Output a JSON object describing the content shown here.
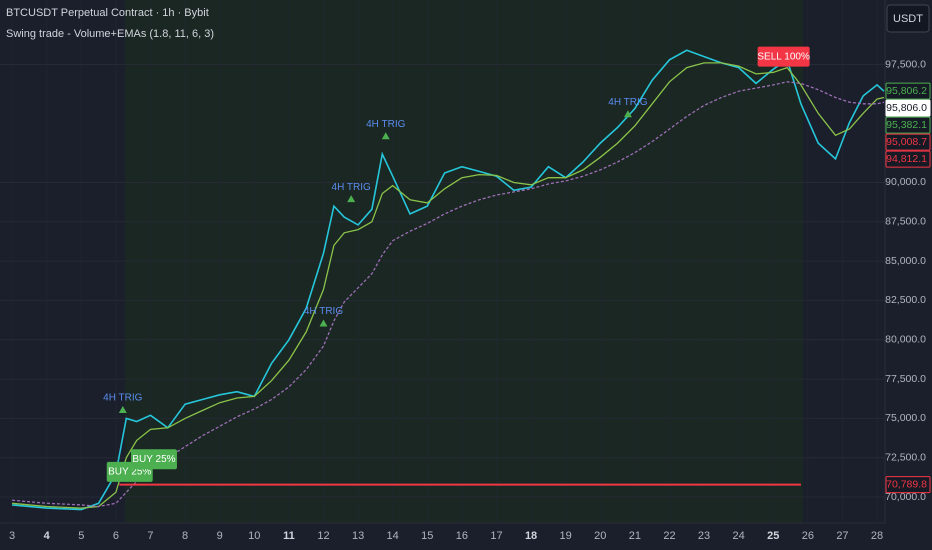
{
  "chart_data": {
    "type": "line",
    "title": "BTCUSDT Perpetual Contract · 1h · Bybit",
    "subtitle": "Swing trade - Volume+EMAs (1.8, 11, 6, 3)",
    "currency_button": "USDT",
    "x": [
      3,
      4,
      5,
      5.5,
      6,
      6.3,
      6.6,
      7,
      7.5,
      8,
      8.5,
      9,
      9.5,
      10,
      10.5,
      11,
      11.5,
      12,
      12.3,
      12.6,
      13,
      13.4,
      13.7,
      14,
      14.5,
      15,
      15.5,
      16,
      16.5,
      17,
      17.5,
      18,
      18.5,
      19,
      19.5,
      20,
      20.5,
      21,
      21.5,
      22,
      22.5,
      23,
      23.5,
      24,
      24.5,
      25,
      25.4,
      25.8,
      26.3,
      26.8,
      27.2,
      27.6,
      28,
      28.2
    ],
    "series": [
      {
        "color": "#26c6da",
        "values": [
          69500,
          69300,
          69200,
          69600,
          71500,
          75000,
          74800,
          75200,
          74400,
          75900,
          76200,
          76500,
          76700,
          76400,
          78500,
          80000,
          82000,
          85500,
          88500,
          87800,
          87300,
          88300,
          91800,
          90400,
          88000,
          88500,
          90600,
          91000,
          90700,
          90400,
          89500,
          89700,
          91000,
          90300,
          91300,
          92500,
          93500,
          94700,
          96500,
          97800,
          98400,
          98000,
          97600,
          97300,
          96300,
          97200,
          97800,
          95000,
          92500,
          91500,
          93800,
          95500,
          96200,
          95800
        ]
      },
      {
        "color": "#8bc34a",
        "values": [
          69600,
          69400,
          69300,
          69400,
          70300,
          72500,
          73600,
          74300,
          74400,
          75000,
          75500,
          76000,
          76300,
          76400,
          77400,
          78700,
          80500,
          83200,
          86000,
          86800,
          87000,
          87500,
          89300,
          89800,
          88900,
          88700,
          89600,
          90300,
          90500,
          90450,
          90000,
          89850,
          90300,
          90300,
          90800,
          91600,
          92500,
          93600,
          95000,
          96400,
          97300,
          97600,
          97600,
          97400,
          96900,
          97000,
          97300,
          96200,
          94400,
          93000,
          93400,
          94400,
          95300,
          95400
        ]
      },
      {
        "color": "#9c6fb5",
        "values": [
          69800,
          69600,
          69500,
          69400,
          69600,
          70300,
          71000,
          71800,
          72500,
          73200,
          73900,
          74500,
          75100,
          75600,
          76200,
          77000,
          78100,
          79600,
          81200,
          82400,
          83300,
          84200,
          85400,
          86300,
          86900,
          87400,
          88000,
          88500,
          88900,
          89200,
          89400,
          89600,
          89900,
          90100,
          90400,
          90800,
          91300,
          91900,
          92600,
          93400,
          94200,
          94900,
          95400,
          95800,
          96000,
          96200,
          96400,
          96300,
          95900,
          95400,
          95100,
          95000,
          95000,
          95100
        ]
      }
    ],
    "xlim": [
      2.65,
      28.23
    ],
    "xticks": [
      3,
      4,
      5,
      6,
      7,
      8,
      9,
      10,
      11,
      12,
      13,
      14,
      15,
      16,
      17,
      18,
      19,
      20,
      21,
      22,
      23,
      24,
      25,
      26,
      27,
      28
    ],
    "bold_xticks": [
      4,
      11,
      18,
      25
    ],
    "ylim": [
      68350,
      101600
    ],
    "yticks": [
      {
        "value": 70000,
        "label": "70,000.0"
      },
      {
        "value": 72500,
        "label": "72,500.0"
      },
      {
        "value": 75000,
        "label": "75,000.0"
      },
      {
        "value": 77500,
        "label": "77,500.0"
      },
      {
        "value": 80000,
        "label": "80,000.0"
      },
      {
        "value": 82500,
        "label": "82,500.0"
      },
      {
        "value": 85000,
        "label": "85,000.0"
      },
      {
        "value": 87500,
        "label": "87,500.0"
      },
      {
        "value": 90000,
        "label": "90,000.0"
      },
      {
        "value": 97500,
        "label": "97,500.0"
      }
    ],
    "grid": true,
    "price_labels": [
      {
        "value": 95806.2,
        "label": "95,806.2",
        "color": "#4caf50",
        "style": "outline"
      },
      {
        "value": 95806.0,
        "label": "95,806.0",
        "color": "#ffffff",
        "style": "filled"
      },
      {
        "value": 95382.1,
        "label": "95,382.1",
        "color": "#4caf50",
        "style": "outline"
      },
      {
        "value": 95008.7,
        "label": "95,008.7",
        "color": "#f23645",
        "style": "outline"
      },
      {
        "value": 94812.1,
        "label": "94,812.1",
        "color": "#f23645",
        "style": "outline"
      },
      {
        "value": 70789.8,
        "label": "70,789.8",
        "color": "#f23645",
        "style": "outline",
        "from": 6.1,
        "to": 25.8
      }
    ],
    "annotations": [
      {
        "kind": "trigger",
        "text": "4H TRIG",
        "x": 6.2,
        "value": 76300
      },
      {
        "kind": "trigger",
        "text": "4H TRIG",
        "x": 12.0,
        "value": 81800
      },
      {
        "kind": "trigger",
        "text": "4H TRIG",
        "x": 12.8,
        "value": 89700
      },
      {
        "kind": "trigger",
        "text": "4H TRIG",
        "x": 13.8,
        "value": 93700
      },
      {
        "kind": "trigger",
        "text": "4H TRIG",
        "x": 20.8,
        "value": 95100
      },
      {
        "kind": "sell",
        "text": "SELL 100%",
        "x": 25.3,
        "value": 98000
      },
      {
        "kind": "buy",
        "text": "BUY 25%",
        "x": 6.4,
        "value": 71600
      },
      {
        "kind": "buy",
        "text": "BUY 25%",
        "x": 7.1,
        "value": 72400
      }
    ]
  }
}
